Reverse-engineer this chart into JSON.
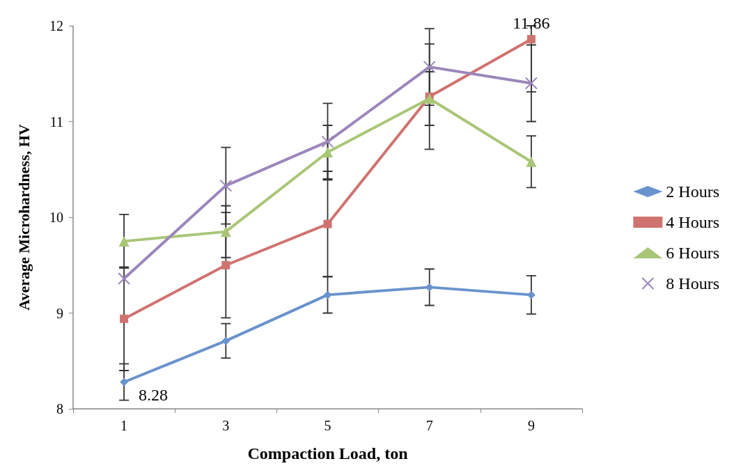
{
  "chart_data": {
    "type": "line",
    "xlabel": "Compaction Load, ton",
    "ylabel": "Average Microhardness, HV",
    "categories": [
      "1",
      "3",
      "5",
      "7",
      "9"
    ],
    "ylim": [
      8,
      12
    ],
    "yticks": [
      8,
      9,
      10,
      11,
      12
    ],
    "legend": "right",
    "grid": false,
    "series": [
      {
        "name": "2 Hours",
        "color": "#6a93cd",
        "marker": "diamond",
        "values": [
          8.28,
          8.71,
          9.19,
          9.27,
          9.19
        ],
        "errors": [
          0.19,
          0.18,
          0.19,
          0.19,
          0.2
        ],
        "value_labels": [
          "8.28",
          null,
          null,
          null,
          null
        ]
      },
      {
        "name": "4 Hours",
        "color": "#cf7370",
        "marker": "square",
        "values": [
          8.94,
          9.5,
          9.93,
          11.26,
          11.86
        ],
        "errors": [
          0.54,
          0.55,
          0.55,
          0.55,
          [
            11.31,
            12
          ]
        ],
        "value_labels": [
          null,
          null,
          null,
          null,
          "11.86"
        ]
      },
      {
        "name": "6 Hours",
        "color": "#a9c677",
        "marker": "triangle",
        "values": [
          9.75,
          9.85,
          10.68,
          11.24,
          10.58
        ],
        "errors": [
          0.28,
          0.27,
          0.28,
          0.28,
          0.27
        ]
      },
      {
        "name": "8 Hours",
        "color": "#9b86bb",
        "marker": "cross",
        "values": [
          9.36,
          10.33,
          10.79,
          11.57,
          11.4
        ],
        "errors": [
          null,
          0.4,
          0.4,
          0.4,
          0.4
        ]
      }
    ]
  }
}
